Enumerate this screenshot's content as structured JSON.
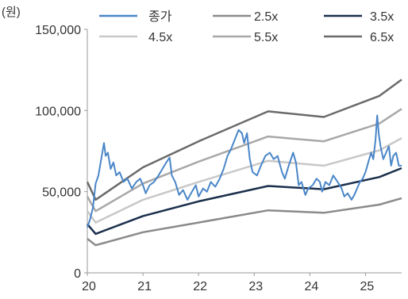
{
  "chart_data": {
    "type": "line",
    "unit_label": "(원)",
    "y_ticks": [
      0,
      50000,
      100000,
      150000
    ],
    "y_tick_labels": [
      "0",
      "50,000",
      "100,000",
      "150,000"
    ],
    "x_ticks": [
      2020,
      2021,
      2022,
      2023,
      2024,
      2025
    ],
    "x_tick_labels": [
      "20",
      "21",
      "22",
      "23",
      "24",
      "25"
    ],
    "ylim": [
      0,
      150000
    ],
    "xlim": [
      2020.0,
      2025.65
    ],
    "grid": false,
    "legend_position": "top",
    "series": [
      {
        "name": "종가",
        "color": "#4a86c8",
        "kind": "price",
        "points": [
          [
            2020.0,
            28000
          ],
          [
            2020.05,
            33000
          ],
          [
            2020.1,
            40000
          ],
          [
            2020.15,
            55000
          ],
          [
            2020.2,
            60000
          ],
          [
            2020.25,
            70000
          ],
          [
            2020.3,
            80000
          ],
          [
            2020.33,
            72000
          ],
          [
            2020.37,
            74000
          ],
          [
            2020.42,
            64000
          ],
          [
            2020.47,
            68000
          ],
          [
            2020.52,
            60000
          ],
          [
            2020.58,
            62000
          ],
          [
            2020.65,
            56000
          ],
          [
            2020.72,
            58000
          ],
          [
            2020.8,
            52000
          ],
          [
            2020.88,
            56000
          ],
          [
            2020.95,
            58000
          ],
          [
            2021.0,
            54000
          ],
          [
            2021.05,
            49000
          ],
          [
            2021.12,
            54000
          ],
          [
            2021.2,
            56000
          ],
          [
            2021.28,
            60000
          ],
          [
            2021.35,
            64000
          ],
          [
            2021.42,
            68000
          ],
          [
            2021.48,
            71000
          ],
          [
            2021.52,
            60000
          ],
          [
            2021.58,
            56000
          ],
          [
            2021.65,
            48000
          ],
          [
            2021.72,
            51000
          ],
          [
            2021.8,
            45000
          ],
          [
            2021.88,
            50000
          ],
          [
            2021.95,
            54000
          ],
          [
            2022.0,
            47000
          ],
          [
            2022.08,
            52000
          ],
          [
            2022.15,
            50000
          ],
          [
            2022.22,
            56000
          ],
          [
            2022.3,
            53000
          ],
          [
            2022.38,
            58000
          ],
          [
            2022.45,
            64000
          ],
          [
            2022.52,
            72000
          ],
          [
            2022.58,
            76000
          ],
          [
            2022.65,
            82000
          ],
          [
            2022.72,
            88000
          ],
          [
            2022.78,
            86000
          ],
          [
            2022.82,
            80000
          ],
          [
            2022.87,
            86000
          ],
          [
            2022.92,
            70000
          ],
          [
            2022.97,
            62000
          ],
          [
            2023.05,
            60000
          ],
          [
            2023.12,
            66000
          ],
          [
            2023.2,
            72000
          ],
          [
            2023.28,
            74000
          ],
          [
            2023.35,
            70000
          ],
          [
            2023.42,
            72000
          ],
          [
            2023.5,
            62000
          ],
          [
            2023.55,
            58000
          ],
          [
            2023.62,
            66000
          ],
          [
            2023.7,
            74000
          ],
          [
            2023.75,
            68000
          ],
          [
            2023.8,
            54000
          ],
          [
            2023.85,
            56000
          ],
          [
            2023.92,
            48000
          ],
          [
            2023.97,
            52000
          ],
          [
            2024.05,
            54000
          ],
          [
            2024.12,
            58000
          ],
          [
            2024.18,
            56000
          ],
          [
            2024.22,
            50000
          ],
          [
            2024.28,
            56000
          ],
          [
            2024.35,
            54000
          ],
          [
            2024.42,
            60000
          ],
          [
            2024.5,
            56000
          ],
          [
            2024.57,
            52000
          ],
          [
            2024.62,
            47000
          ],
          [
            2024.68,
            49000
          ],
          [
            2024.75,
            45000
          ],
          [
            2024.8,
            48000
          ],
          [
            2024.85,
            52000
          ],
          [
            2024.9,
            56000
          ],
          [
            2024.95,
            58000
          ],
          [
            2025.0,
            62000
          ],
          [
            2025.05,
            68000
          ],
          [
            2025.1,
            74000
          ],
          [
            2025.14,
            70000
          ],
          [
            2025.18,
            82000
          ],
          [
            2025.21,
            97000
          ],
          [
            2025.24,
            85000
          ],
          [
            2025.27,
            78000
          ],
          [
            2025.32,
            70000
          ],
          [
            2025.37,
            74000
          ],
          [
            2025.42,
            78000
          ],
          [
            2025.46,
            66000
          ],
          [
            2025.5,
            72000
          ],
          [
            2025.55,
            74000
          ],
          [
            2025.6,
            66000
          ],
          [
            2025.65,
            66000
          ]
        ]
      },
      {
        "name": "2.5x",
        "color": "#8a8a8a",
        "kind": "band",
        "points": [
          [
            2020.0,
            21000
          ],
          [
            2020.15,
            17000
          ],
          [
            2021.0,
            25000
          ],
          [
            2022.0,
            31000
          ],
          [
            2023.25,
            38500
          ],
          [
            2024.25,
            37000
          ],
          [
            2025.25,
            42000
          ],
          [
            2025.65,
            46000
          ]
        ]
      },
      {
        "name": "3.5x",
        "color": "#1b2f4c",
        "kind": "band",
        "points": [
          [
            2020.0,
            30000
          ],
          [
            2020.15,
            24000
          ],
          [
            2021.0,
            35000
          ],
          [
            2022.0,
            44000
          ],
          [
            2023.25,
            53500
          ],
          [
            2024.25,
            51500
          ],
          [
            2025.25,
            59000
          ],
          [
            2025.65,
            64500
          ]
        ]
      },
      {
        "name": "4.5x",
        "color": "#c8c8c8",
        "kind": "band",
        "points": [
          [
            2020.0,
            38000
          ],
          [
            2020.15,
            31000
          ],
          [
            2021.0,
            45000
          ],
          [
            2022.0,
            56000
          ],
          [
            2023.25,
            69000
          ],
          [
            2024.25,
            66000
          ],
          [
            2025.25,
            75500
          ],
          [
            2025.65,
            83000
          ]
        ]
      },
      {
        "name": "5.5x",
        "color": "#a8a8a8",
        "kind": "band",
        "points": [
          [
            2020.0,
            47000
          ],
          [
            2020.15,
            38000
          ],
          [
            2021.0,
            55000
          ],
          [
            2022.0,
            68500
          ],
          [
            2023.25,
            84000
          ],
          [
            2024.25,
            81000
          ],
          [
            2025.25,
            92000
          ],
          [
            2025.65,
            101000
          ]
        ]
      },
      {
        "name": "6.5x",
        "color": "#6a6a6a",
        "kind": "band",
        "points": [
          [
            2020.0,
            56000
          ],
          [
            2020.15,
            45000
          ],
          [
            2021.0,
            65000
          ],
          [
            2022.0,
            81000
          ],
          [
            2023.25,
            99500
          ],
          [
            2024.25,
            96000
          ],
          [
            2025.25,
            109000
          ],
          [
            2025.65,
            119000
          ]
        ]
      }
    ]
  }
}
